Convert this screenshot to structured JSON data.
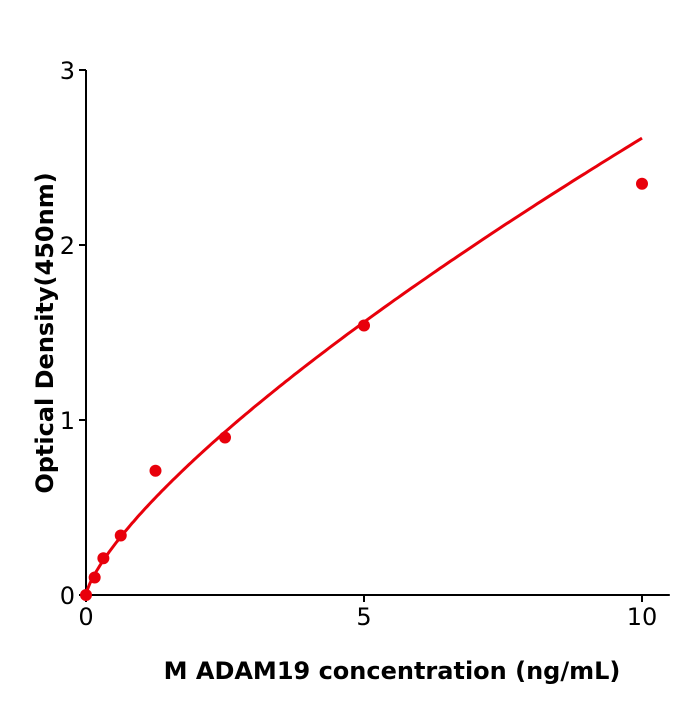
{
  "chart_data": {
    "type": "scatter",
    "title": "",
    "xlabel": "M  ADAM19 concentration (ng/mL)",
    "ylabel": "Optical Density(450nm)",
    "xlim": [
      0,
      10.5
    ],
    "ylim": [
      0,
      3
    ],
    "xticks": [
      0,
      5,
      10
    ],
    "yticks": [
      0,
      1,
      2,
      3
    ],
    "xtick_labels": [
      "0",
      "5",
      "10"
    ],
    "ytick_labels": [
      "0",
      "1",
      "2",
      "3"
    ],
    "grid": false,
    "series": [
      {
        "x": [
          0,
          0.156,
          0.3125,
          0.625,
          1.25,
          2.5,
          5,
          10
        ],
        "y": [
          0.0,
          0.1,
          0.21,
          0.34,
          0.71,
          0.9,
          1.54,
          2.35
        ],
        "color": "#e8000b",
        "fit_line": true
      }
    ]
  }
}
